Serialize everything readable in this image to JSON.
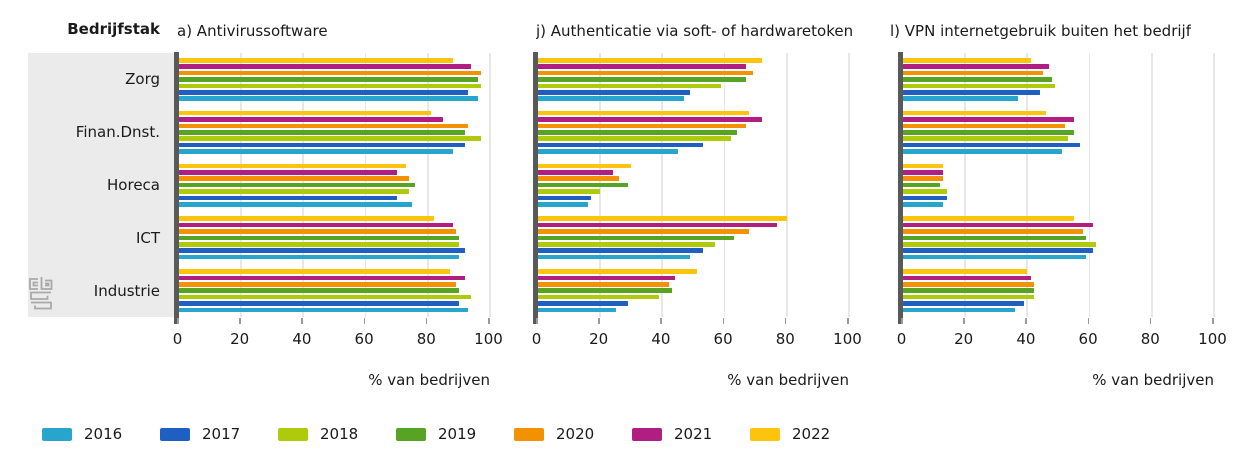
{
  "header": {
    "row_label_title": "Bedrijfstak"
  },
  "categories": [
    "Zorg",
    "Finan.Dnst.",
    "Horeca",
    "ICT",
    "Industrie"
  ],
  "years": [
    "2016",
    "2017",
    "2018",
    "2019",
    "2020",
    "2021",
    "2022"
  ],
  "palette": {
    "2016": "#27a5cd",
    "2017": "#1e5fc1",
    "2018": "#afca0b",
    "2019": "#57a425",
    "2020": "#f39200",
    "2021": "#b11e81",
    "2022": "#fdc40e"
  },
  "axis": {
    "ticks": [
      "0",
      "20",
      "40",
      "60",
      "80",
      "100"
    ],
    "tick_values": [
      0,
      20,
      40,
      60,
      80,
      100
    ],
    "xlabel": "% van bedrijven",
    "xlim": [
      0,
      100
    ],
    "grid": true
  },
  "legend": {
    "position": "bottom-left",
    "items": [
      {
        "label": "2016",
        "color": "#27a5cd"
      },
      {
        "label": "2017",
        "color": "#1e5fc1"
      },
      {
        "label": "2018",
        "color": "#afca0b"
      },
      {
        "label": "2019",
        "color": "#57a425"
      },
      {
        "label": "2020",
        "color": "#f39200"
      },
      {
        "label": "2021",
        "color": "#b11e81"
      },
      {
        "label": "2022",
        "color": "#fdc40e"
      }
    ]
  },
  "logo": {
    "name": "cbs-logo"
  },
  "chart_data": [
    {
      "type": "bar",
      "orientation": "horizontal",
      "title": "a) Antivirussoftware",
      "categories": [
        "Zorg",
        "Finan.Dnst.",
        "Horeca",
        "ICT",
        "Industrie"
      ],
      "xlabel": "% van bedrijven",
      "xlim": [
        0,
        100
      ],
      "series": [
        {
          "name": "2016",
          "values": [
            96,
            88,
            75,
            90,
            93
          ]
        },
        {
          "name": "2017",
          "values": [
            93,
            92,
            70,
            92,
            90
          ]
        },
        {
          "name": "2018",
          "values": [
            97,
            97,
            74,
            90,
            94
          ]
        },
        {
          "name": "2019",
          "values": [
            96,
            92,
            76,
            90,
            90
          ]
        },
        {
          "name": "2020",
          "values": [
            97,
            93,
            74,
            89,
            89
          ]
        },
        {
          "name": "2021",
          "values": [
            94,
            85,
            70,
            88,
            92
          ]
        },
        {
          "name": "2022",
          "values": [
            88,
            81,
            73,
            82,
            87
          ]
        }
      ]
    },
    {
      "type": "bar",
      "orientation": "horizontal",
      "title": "j) Authenticatie via soft- of hardwaretoken",
      "categories": [
        "Zorg",
        "Finan.Dnst.",
        "Horeca",
        "ICT",
        "Industrie"
      ],
      "xlabel": "% van bedrijven",
      "xlim": [
        0,
        100
      ],
      "series": [
        {
          "name": "2016",
          "values": [
            47,
            45,
            16,
            49,
            25
          ]
        },
        {
          "name": "2017",
          "values": [
            49,
            53,
            17,
            53,
            29
          ]
        },
        {
          "name": "2018",
          "values": [
            59,
            62,
            20,
            57,
            39
          ]
        },
        {
          "name": "2019",
          "values": [
            67,
            64,
            29,
            63,
            43
          ]
        },
        {
          "name": "2020",
          "values": [
            69,
            67,
            26,
            68,
            42
          ]
        },
        {
          "name": "2021",
          "values": [
            67,
            72,
            24,
            77,
            44
          ]
        },
        {
          "name": "2022",
          "values": [
            72,
            68,
            30,
            80,
            51
          ]
        }
      ]
    },
    {
      "type": "bar",
      "orientation": "horizontal",
      "title": "l) VPN internetgebruik buiten het bedrijf",
      "categories": [
        "Zorg",
        "Finan.Dnst.",
        "Horeca",
        "ICT",
        "Industrie"
      ],
      "xlabel": "% van bedrijven",
      "xlim": [
        0,
        100
      ],
      "series": [
        {
          "name": "2016",
          "values": [
            37,
            51,
            13,
            59,
            36
          ]
        },
        {
          "name": "2017",
          "values": [
            44,
            57,
            14,
            61,
            39
          ]
        },
        {
          "name": "2018",
          "values": [
            49,
            53,
            14,
            62,
            42
          ]
        },
        {
          "name": "2019",
          "values": [
            48,
            55,
            12,
            59,
            42
          ]
        },
        {
          "name": "2020",
          "values": [
            45,
            52,
            13,
            58,
            42
          ]
        },
        {
          "name": "2021",
          "values": [
            47,
            55,
            13,
            61,
            41
          ]
        },
        {
          "name": "2022",
          "values": [
            41,
            46,
            13,
            55,
            40
          ]
        }
      ]
    }
  ]
}
